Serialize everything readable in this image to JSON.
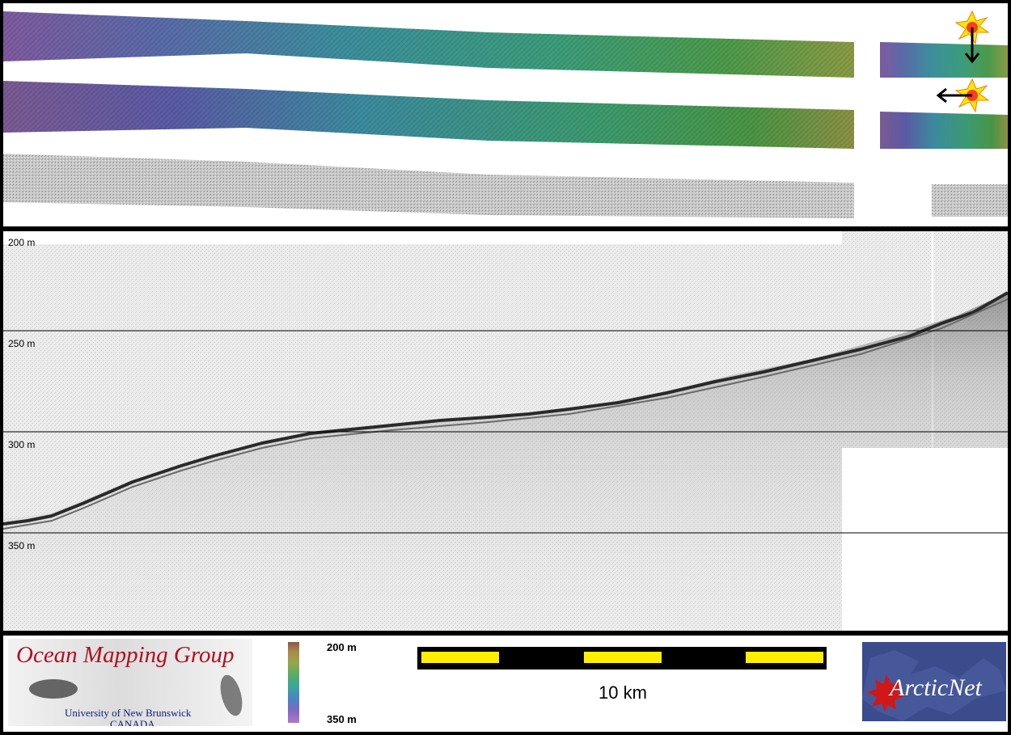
{
  "depth_axis": {
    "labels": [
      "200 m",
      "250 m",
      "300 m",
      "350 m"
    ]
  },
  "legend": {
    "colorbar_top": "200 m",
    "colorbar_bottom": "350 m",
    "scale_bar_label": "10 km"
  },
  "logos": {
    "ocean_mapping": {
      "title": "Ocean Mapping Group",
      "university": "University of New Brunswick",
      "country": "CANADA"
    },
    "arcticnet": {
      "text": "ArcticNet"
    }
  },
  "icons": {
    "sun_illumination_vertical": "sun-arrow-down-icon",
    "sun_illumination_horizontal": "sun-arrow-left-icon"
  },
  "colors": {
    "swath_start": "#7a5a9a",
    "swath_mid": "#3a9a92",
    "swath_end": "#6a9a3a",
    "scale_bar_fill": "#ffee00",
    "frame": "#000000"
  }
}
